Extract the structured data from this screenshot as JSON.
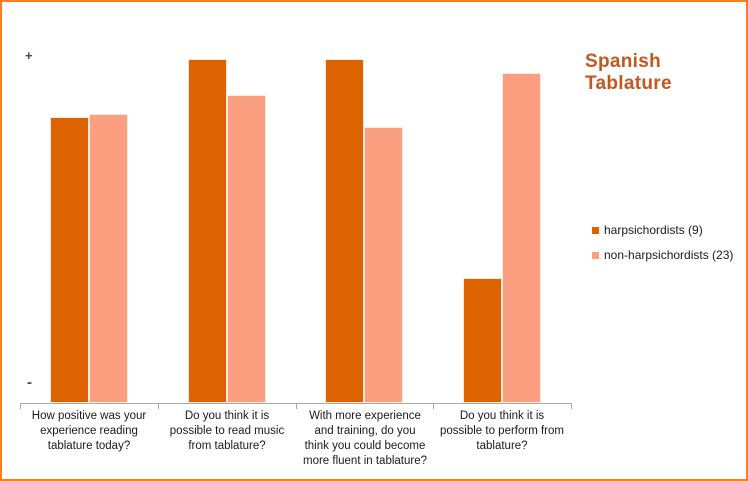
{
  "title": {
    "line1": "Spanish",
    "line2": "Tablature",
    "color": "#C4571D"
  },
  "y_axis": {
    "top_label": "+",
    "bottom_label": "-"
  },
  "legend": {
    "items": [
      {
        "label": "harpsichordists (9)",
        "color": "#DD6300"
      },
      {
        "label": "non-harpsichordists (23)",
        "color": "#FC9F81"
      }
    ]
  },
  "frame": {
    "border_color": "#FF7D1F"
  },
  "chart_data": {
    "type": "bar",
    "title": "Spanish Tablature",
    "categories": [
      "How positive was your experience reading tablature today?",
      "Do you think it is possible to read music from tablature?",
      "With more experience and training, do you think you could become more fluent in tablature?",
      "Do you think it is possible to perform from tablature?"
    ],
    "categories_wrapped": [
      [
        "How positive was your",
        "experience reading",
        "tablature today?"
      ],
      [
        "Do you think it is",
        "possible to read music",
        "from tablature?"
      ],
      [
        "With more experience",
        "and training, do you",
        "think you could become",
        "more fluent in tablature?"
      ],
      [
        "Do you think it is",
        "possible to perform from",
        "tablature?"
      ]
    ],
    "series": [
      {
        "name": "harpsichordists (9)",
        "key": "harpsichordists",
        "color": "#DD6300",
        "values": [
          82.5,
          99,
          99,
          36
        ]
      },
      {
        "name": "non-harpsichordists (23)",
        "key": "non-harpsichordists",
        "color": "#FC9F81",
        "values": [
          83.3,
          88.8,
          79.5,
          95.1
        ]
      }
    ],
    "xlabel": "",
    "ylabel": "",
    "ylim": [
      0,
      100
    ],
    "y_axis_top_label": "+",
    "y_axis_bottom_label": "-",
    "grid": false,
    "legend_position": "right",
    "value_note": "values are percent of plot height; chart shows only + / - qualitative axis"
  }
}
